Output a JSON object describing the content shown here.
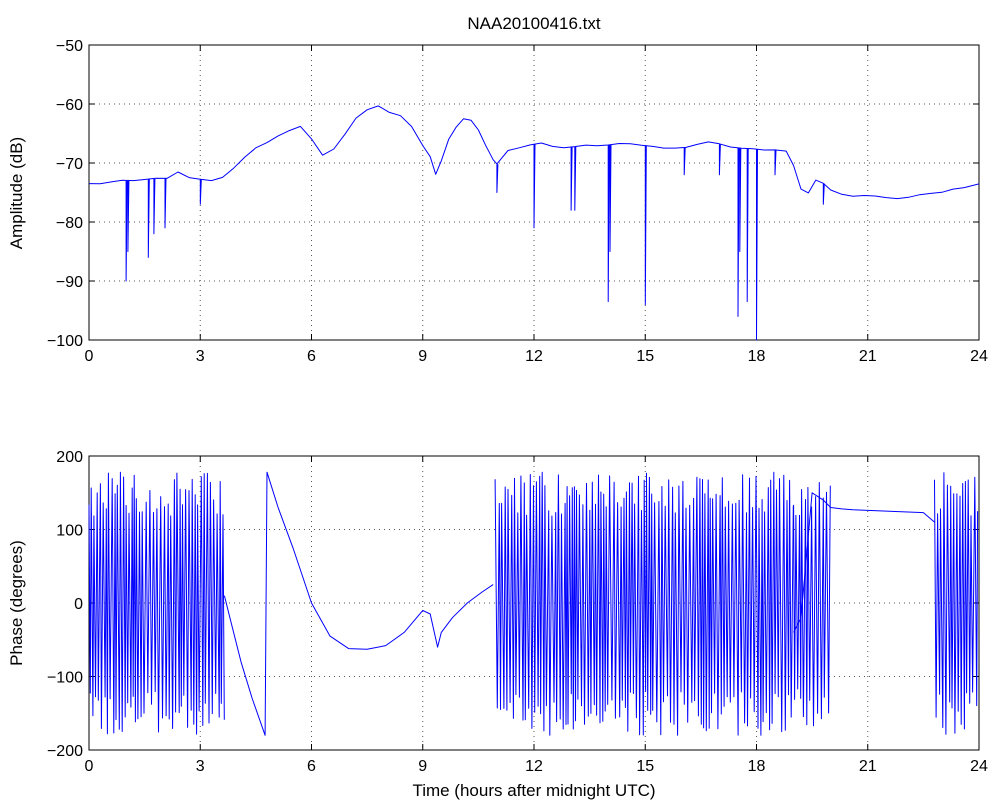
{
  "chart_data": [
    {
      "type": "line",
      "title": "NAA20100416.txt",
      "xlabel": "",
      "ylabel": "Amplitude (dB)",
      "xlim": [
        0,
        24
      ],
      "ylim": [
        -100,
        -50
      ],
      "xticks": [
        0,
        3,
        6,
        9,
        12,
        15,
        18,
        21,
        24
      ],
      "xtick_labels": [
        "0",
        "3",
        "6",
        "9",
        "12",
        "15",
        "18",
        "21",
        "24"
      ],
      "yticks": [
        -100,
        -90,
        -80,
        -70,
        -60,
        -50
      ],
      "ytick_labels": [
        "−100",
        "−90",
        "−80",
        "−70",
        "−60",
        "−50"
      ],
      "grid": true,
      "color": "#0000ff",
      "series": [
        {
          "x": [
            0,
            0.3,
            0.6,
            0.9,
            1.2,
            1.5,
            1.8,
            2.1,
            2.4,
            2.7,
            3.0,
            3.3,
            3.6,
            3.9,
            4.2,
            4.5,
            4.8,
            5.1,
            5.4,
            5.7,
            6.0,
            6.3,
            6.6,
            6.9,
            7.2,
            7.5,
            7.8,
            8.1,
            8.4,
            8.7,
            9.0,
            9.2,
            9.35,
            9.5,
            9.7,
            9.9,
            10.1,
            10.3,
            10.5,
            10.7,
            10.9,
            11.0,
            11.3,
            11.6,
            11.9,
            12.2,
            12.5,
            12.8,
            13.1,
            13.4,
            13.7,
            14.0,
            14.3,
            14.6,
            14.9,
            15.2,
            15.5,
            15.8,
            16.1,
            16.4,
            16.7,
            17.0,
            17.3,
            17.6,
            17.9,
            18.2,
            18.5,
            18.8,
            19.0,
            19.2,
            19.4,
            19.6,
            19.8,
            20.0,
            20.3,
            20.6,
            20.9,
            21.2,
            21.5,
            21.8,
            22.1,
            22.4,
            22.7,
            23.0,
            23.3,
            23.6,
            24.0
          ],
          "y": [
            -73.5,
            -73.5,
            -73.3,
            -73.0,
            -73.0,
            -72.8,
            -72.7,
            -72.5,
            -71.5,
            -72.5,
            -72.8,
            -72.9,
            -72.4,
            -71.0,
            -69.0,
            -67.5,
            -66.5,
            -65.5,
            -64.5,
            -63.8,
            -66.0,
            -68.8,
            -67.5,
            -65.0,
            -62.5,
            -61.0,
            -60.2,
            -61.5,
            -62.0,
            -63.8,
            -67.0,
            -69.0,
            -72.0,
            -69.5,
            -66.0,
            -64.0,
            -62.5,
            -62.8,
            -64.5,
            -67.0,
            -69.5,
            -70.2,
            -68.0,
            -67.3,
            -67.0,
            -66.5,
            -67.2,
            -67.5,
            -67.2,
            -67.0,
            -67.0,
            -66.9,
            -66.8,
            -66.8,
            -67.0,
            -67.3,
            -67.6,
            -67.5,
            -67.3,
            -66.8,
            -66.3,
            -66.8,
            -67.3,
            -67.5,
            -67.6,
            -67.7,
            -67.8,
            -68.0,
            -70.5,
            -74.5,
            -75.0,
            -73.0,
            -73.5,
            -74.5,
            -75.2,
            -75.5,
            -75.4,
            -75.5,
            -75.8,
            -76.0,
            -75.8,
            -75.5,
            -75.2,
            -75.0,
            -74.5,
            -74.2,
            -73.5
          ]
        }
      ],
      "annotations": [
        {
          "type": "dips",
          "x": [
            1.0,
            1.05,
            1.6,
            1.75,
            2.05,
            3.0,
            11.0,
            12.0,
            13.0,
            13.1,
            14.0,
            14.05,
            15.0,
            16.05,
            17.0,
            17.5,
            17.55,
            17.75,
            18.0,
            18.5,
            19.8
          ],
          "y": [
            -90,
            -85,
            -86,
            -82,
            -81,
            -77,
            -75,
            -81,
            -78,
            -78,
            -93.5,
            -85,
            -94,
            -72,
            -72,
            -96,
            -85,
            -93.5,
            -100,
            -72,
            -77
          ]
        }
      ]
    },
    {
      "type": "line",
      "title": "",
      "xlabel": "Time (hours after midnight UTC)",
      "ylabel": "Phase (degrees)",
      "xlim": [
        0,
        24
      ],
      "ylim": [
        -200,
        200
      ],
      "xticks": [
        0,
        3,
        6,
        9,
        12,
        15,
        18,
        21,
        24
      ],
      "xtick_labels": [
        "0",
        "3",
        "6",
        "9",
        "12",
        "15",
        "18",
        "21",
        "24"
      ],
      "yticks": [
        -200,
        -100,
        0,
        100,
        200
      ],
      "ytick_labels": [
        "−200",
        "−100",
        "0",
        "100",
        "200"
      ],
      "grid": true,
      "color": "#0000ff",
      "series": [
        {
          "x": [
            3.65,
            3.8,
            4.1,
            4.4,
            4.75,
            4.8,
            5.1,
            5.5,
            6.0,
            6.5,
            7.0,
            7.5,
            8.0,
            8.5,
            9.0,
            9.2,
            9.4,
            9.5,
            9.8,
            10.2,
            10.6,
            10.9
          ],
          "y": [
            10,
            -20,
            -80,
            -130,
            -180,
            178,
            130,
            75,
            0,
            -45,
            -62,
            -63,
            -58,
            -40,
            -10,
            -15,
            -60,
            -40,
            -20,
            0,
            15,
            25
          ]
        },
        {
          "x": [
            19.0,
            19.2,
            19.5,
            19.8,
            20.0,
            20.3,
            20.6,
            21.0,
            21.5,
            22.0,
            22.5,
            22.8
          ],
          "y": [
            -40,
            -20,
            150,
            140,
            130,
            128,
            127,
            126,
            125,
            124,
            123,
            110
          ]
        }
      ],
      "annotations": [
        {
          "type": "oscillation-band",
          "x_range": [
            0,
            3.65
          ],
          "y_range": [
            -180,
            178
          ]
        },
        {
          "type": "oscillation-band",
          "x_range": [
            10.95,
            19.0
          ],
          "y_range": [
            -180,
            178
          ]
        },
        {
          "type": "oscillation-band",
          "x_range": [
            19.0,
            20.0
          ],
          "y_range": [
            -175,
            175
          ]
        },
        {
          "type": "oscillation-band",
          "x_range": [
            22.8,
            24.0
          ],
          "y_range": [
            -180,
            178
          ]
        }
      ]
    }
  ]
}
